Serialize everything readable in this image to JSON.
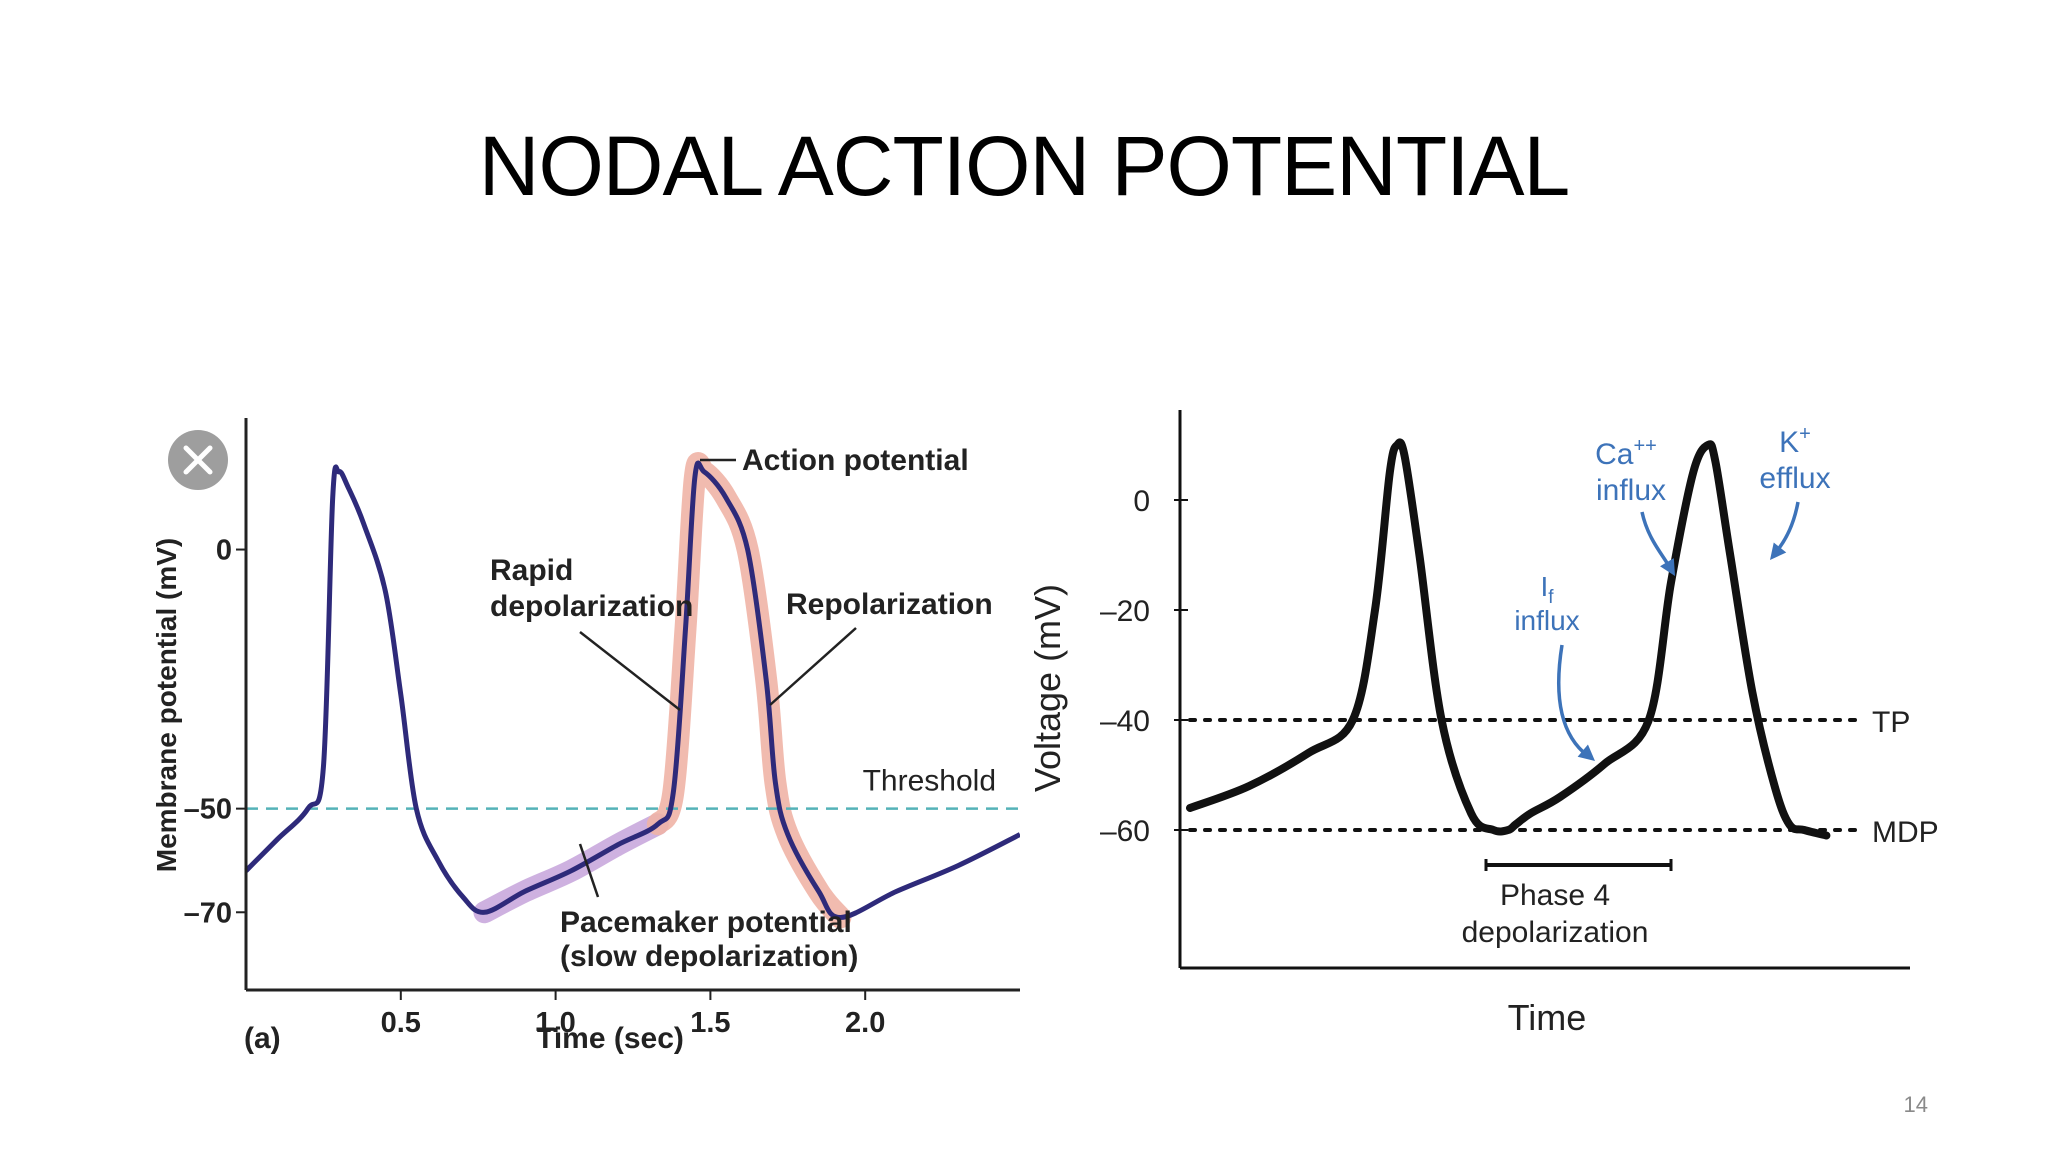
{
  "slide": {
    "title": "NODAL ACTION POTENTIAL",
    "page_number": "14"
  },
  "colors": {
    "trace_a": "#2e2a7a",
    "highlight_a": "#c9a9dd",
    "highlight_b": "#f0b4a6",
    "threshold": "#55b2b8",
    "trace_b": "#111111",
    "ion_label": "#3d73b9"
  },
  "icons": {
    "close": "close-icon"
  },
  "chart_data": [
    {
      "type": "line",
      "panel_label": "(a)",
      "xlabel": "Time (sec)",
      "ylabel": "Membrane potential (mV)",
      "xlim": [
        0,
        2.5
      ],
      "ylim": [
        -85,
        25
      ],
      "x_ticks": [
        {
          "value": 0.5,
          "label": "0.5"
        },
        {
          "value": 1.0,
          "label": "1.0"
        },
        {
          "value": 1.5,
          "label": "1.5"
        },
        {
          "value": 2.0,
          "label": "2.0"
        }
      ],
      "y_ticks": [
        {
          "value": 0,
          "label": "0"
        },
        {
          "value": -50,
          "label": "–50"
        },
        {
          "value": -70,
          "label": "–70"
        }
      ],
      "threshold": {
        "value": -50,
        "label": "Threshold"
      },
      "series": [
        {
          "x": [
            0,
            0.1,
            0.2,
            0.25,
            0.28,
            0.3,
            0.33,
            0.38,
            0.45,
            0.5,
            0.55,
            0.62,
            0.7,
            0.77,
            0.9,
            1.05,
            1.2,
            1.33,
            1.38,
            1.42,
            1.45,
            1.48,
            1.55,
            1.62,
            1.68,
            1.71,
            1.75,
            1.85,
            1.92,
            2.1,
            2.3,
            2.5
          ],
          "y": [
            -62,
            -56,
            -50,
            -42,
            10,
            15,
            12,
            5,
            -8,
            -28,
            -50,
            -60,
            -67,
            -70,
            -66,
            -62,
            -57,
            -53,
            -47,
            -15,
            14,
            15,
            10,
            0,
            -25,
            -45,
            -55,
            -66,
            -71,
            -66,
            -61,
            -55
          ]
        }
      ],
      "highlights": [
        {
          "name": "Pacemaker potential",
          "x_range": [
            0.77,
            1.33
          ]
        },
        {
          "name": "Action potential",
          "x_range": [
            1.33,
            1.92
          ]
        }
      ],
      "annotations": {
        "action_potential": "Action potential",
        "rapid_depolarization": [
          "Rapid",
          "depolarization"
        ],
        "repolarization": "Repolarization",
        "pacemaker_potential": [
          "Pacemaker potential",
          "(slow depolarization)"
        ]
      }
    },
    {
      "type": "line",
      "xlabel": "Time",
      "ylabel": "Voltage (mV)",
      "ylim": [
        -85,
        18
      ],
      "y_ticks": [
        {
          "value": 0,
          "label": "0"
        },
        {
          "value": -20,
          "label": "–20"
        },
        {
          "value": -40,
          "label": "–40"
        },
        {
          "value": -60,
          "label": "–60"
        }
      ],
      "reference_lines": [
        {
          "value": -40,
          "label": "TP"
        },
        {
          "value": -60,
          "label": "MDP"
        }
      ],
      "series": [
        {
          "x": [
            0,
            8,
            16,
            22,
            25,
            27,
            28,
            29,
            31,
            34,
            38,
            41,
            43,
            44,
            46,
            50,
            56,
            62,
            65,
            68,
            70,
            71,
            73,
            76,
            79,
            81,
            83,
            86
          ],
          "y": [
            -56,
            -52,
            -46,
            -40,
            -20,
            5,
            10,
            8,
            -10,
            -40,
            -57,
            -60,
            -60,
            -59,
            -57,
            -54,
            -48,
            -40,
            -15,
            5,
            10,
            7,
            -10,
            -35,
            -52,
            -59,
            -60,
            -61
          ]
        }
      ],
      "phase_bracket": {
        "x_range": [
          40,
          65
        ],
        "label": [
          "Phase 4",
          "depolarization"
        ]
      },
      "ion_annotations": [
        {
          "text": [
            "I",
            "f",
            "influx"
          ]
        },
        {
          "text": [
            "Ca",
            "++",
            "influx"
          ]
        },
        {
          "text": [
            "K",
            "+",
            "efflux"
          ]
        }
      ]
    }
  ]
}
